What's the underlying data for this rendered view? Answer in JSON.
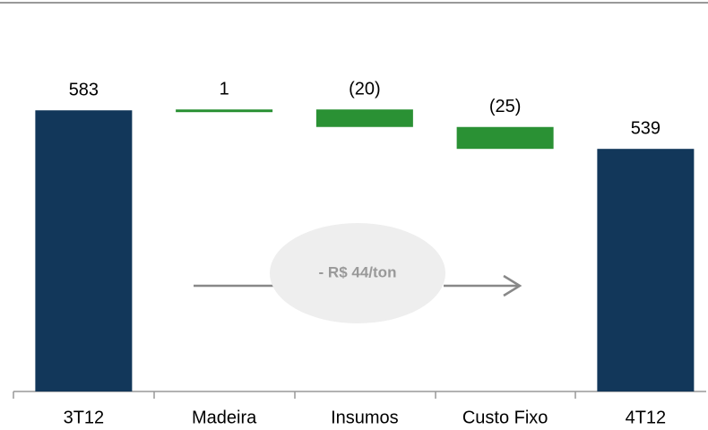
{
  "chart_data": {
    "type": "waterfall",
    "categories": [
      "3T12",
      "Madeira",
      "Insumos",
      "Custo Fixo",
      "4T12"
    ],
    "values": [
      583,
      1,
      -20,
      -25,
      539
    ],
    "value_labels": [
      "583",
      "1",
      "(20)",
      "(25)",
      "539"
    ],
    "colors": [
      "#12375a",
      "#2a9134",
      "#2a9134",
      "#2a9134",
      "#12375a"
    ],
    "ylim": [
      262,
      620
    ],
    "annotation": "- R$ 44/ton"
  }
}
